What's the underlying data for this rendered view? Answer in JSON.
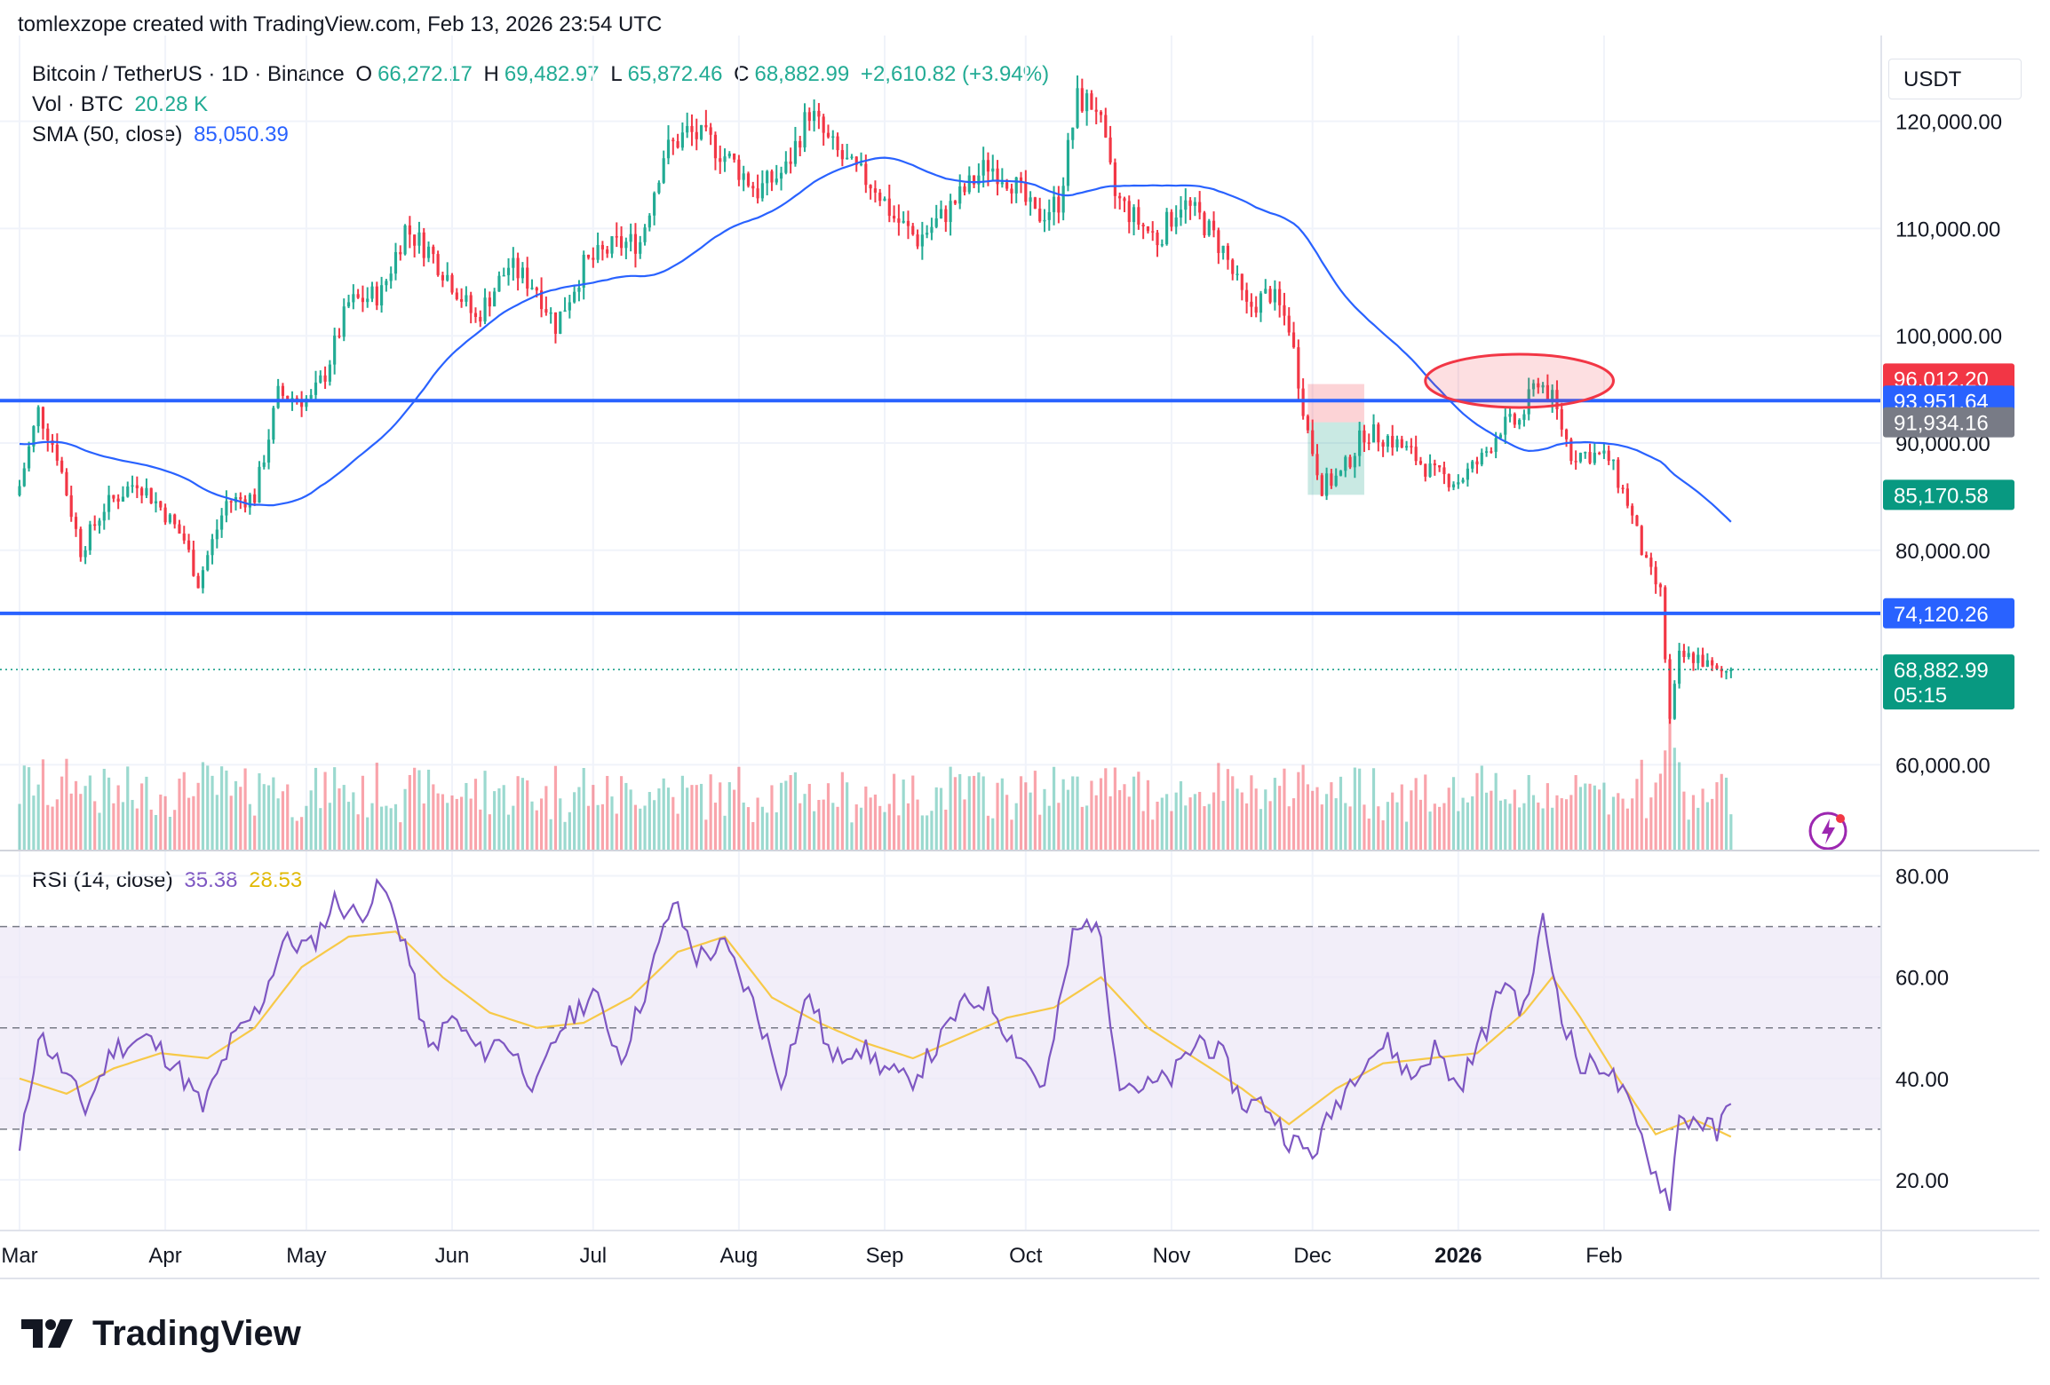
{
  "credit": "tomlexzope created with TradingView.com, Feb 13, 2026 23:54 UTC",
  "brand": "TradingView",
  "legend": {
    "symbol": "Bitcoin / TetherUS · 1D · Binance",
    "o_label": "O",
    "o": "66,272.17",
    "h_label": "H",
    "h": "69,482.97",
    "l_label": "L",
    "l": "65,872.46",
    "c_label": "C",
    "c": "68,882.99",
    "change": "+2,610.82 (+3.94%)",
    "vol_label": "Vol · BTC",
    "vol": "20.28 K",
    "sma_label": "SMA (50, close)",
    "sma": "85,050.39",
    "rsi_label": "RSI (14, close)",
    "rsi": "35.38",
    "rsi_ma": "28.53"
  },
  "axis_unit": "USDT",
  "colors": {
    "up": "#22ab94",
    "down": "#f23645",
    "sma": "#2962ff",
    "hline": "#2962ff",
    "rsi": "#7e57c2",
    "rsi_ma": "#f7c948",
    "rsi_band": "#ede7f6"
  },
  "chart_data": [
    {
      "type": "candlestick",
      "title": "Bitcoin / TetherUS · 1D · Binance",
      "ylim": [
        52000,
        128000
      ],
      "y_ticks": [
        "60,000.00",
        "80,000.00",
        "90,000.00",
        "100,000.00",
        "110,000.00",
        "120,000.00"
      ],
      "y_tick_values": [
        60000,
        80000,
        90000,
        100000,
        110000,
        120000
      ],
      "x_tick_labels": [
        "Mar",
        "Apr",
        "May",
        "Jun",
        "Jul",
        "Aug",
        "Sep",
        "Oct",
        "Nov",
        "Dec",
        "2026",
        "Feb"
      ],
      "close_series": [
        [
          0,
          86000
        ],
        [
          4,
          93000
        ],
        [
          8,
          89000
        ],
        [
          13,
          80000
        ],
        [
          18,
          84000
        ],
        [
          25,
          86500
        ],
        [
          30,
          84000
        ],
        [
          35,
          81000
        ],
        [
          38,
          77000
        ],
        [
          44,
          84500
        ],
        [
          50,
          85000
        ],
        [
          55,
          94500
        ],
        [
          62,
          94000
        ],
        [
          65,
          96500
        ],
        [
          70,
          103000
        ],
        [
          77,
          104000
        ],
        [
          82,
          110000
        ],
        [
          87,
          108000
        ],
        [
          92,
          105000
        ],
        [
          97,
          101500
        ],
        [
          104,
          106500
        ],
        [
          110,
          104500
        ],
        [
          114,
          101000
        ],
        [
          120,
          106500
        ],
        [
          127,
          108500
        ],
        [
          132,
          108800
        ],
        [
          137,
          117000
        ],
        [
          142,
          119000
        ],
        [
          147,
          118000
        ],
        [
          152,
          116000
        ],
        [
          157,
          113500
        ],
        [
          163,
          115500
        ],
        [
          168,
          121000
        ],
        [
          172,
          118000
        ],
        [
          177,
          115500
        ],
        [
          182,
          114000
        ],
        [
          186,
          111000
        ],
        [
          191,
          109000
        ],
        [
          196,
          111000
        ],
        [
          201,
          113500
        ],
        [
          206,
          116000
        ],
        [
          211,
          114500
        ],
        [
          216,
          111000
        ],
        [
          221,
          112500
        ],
        [
          225,
          122000
        ],
        [
          229,
          121500
        ],
        [
          233,
          113000
        ],
        [
          237,
          111000
        ],
        [
          242,
          109000
        ],
        [
          247,
          112500
        ],
        [
          251,
          111000
        ],
        [
          256,
          108000
        ],
        [
          261,
          102500
        ],
        [
          266,
          104000
        ],
        [
          270,
          101000
        ],
        [
          274,
          91000
        ],
        [
          277,
          86000
        ],
        [
          281,
          87000
        ],
        [
          286,
          91000
        ],
        [
          291,
          90500
        ],
        [
          296,
          89000
        ],
        [
          301,
          87000
        ],
        [
          306,
          86500
        ],
        [
          311,
          88500
        ],
        [
          315,
          91500
        ],
        [
          319,
          92000
        ],
        [
          323,
          96000
        ],
        [
          326,
          94000
        ],
        [
          330,
          89000
        ],
        [
          334,
          89000
        ],
        [
          338,
          88500
        ],
        [
          342,
          84500
        ],
        [
          346,
          78500
        ],
        [
          349,
          76000
        ],
        [
          351,
          64000
        ],
        [
          353,
          70000
        ],
        [
          357,
          70000
        ],
        [
          361,
          68500
        ],
        [
          364,
          68883
        ]
      ],
      "last_price": 68882.99,
      "horizontal_lines": [
        93950,
        74120
      ],
      "price_labels": [
        {
          "text": "96,012.20",
          "value": 96012.2,
          "color": "#f23645"
        },
        {
          "text": "93,951.64",
          "value": 93951.64,
          "color": "#2962ff"
        },
        {
          "text": "91,934.16",
          "value": 91934.16,
          "color": "#787b86"
        },
        {
          "text": "85,170.58",
          "value": 85170.58,
          "color": "#089981"
        },
        {
          "text": "74,120.26",
          "value": 74120.26,
          "color": "#2962ff"
        },
        {
          "text": "68,882.99",
          "value": 68882.99,
          "color": "#089981",
          "sub": "05:15"
        }
      ]
    },
    {
      "type": "line",
      "title": "RSI (14, close)",
      "ylim": [
        10,
        85
      ],
      "y_ticks": [
        "20.00",
        "40.00",
        "60.00",
        "80.00"
      ],
      "y_tick_values": [
        20,
        40,
        60,
        80
      ],
      "band": [
        30,
        70
      ],
      "series": [
        {
          "name": "RSI (14, close)",
          "points": [
            [
              0,
              25
            ],
            [
              4,
              49
            ],
            [
              9,
              42
            ],
            [
              14,
              34
            ],
            [
              20,
              46
            ],
            [
              27,
              48
            ],
            [
              33,
              43
            ],
            [
              39,
              34
            ],
            [
              45,
              47
            ],
            [
              51,
              54
            ],
            [
              56,
              67
            ],
            [
              62,
              66
            ],
            [
              67,
              75
            ],
            [
              72,
              72
            ],
            [
              77,
              78
            ],
            [
              82,
              67
            ],
            [
              87,
              45
            ],
            [
              92,
              52
            ],
            [
              98,
              45
            ],
            [
              103,
              48
            ],
            [
              110,
              38
            ],
            [
              115,
              50
            ],
            [
              122,
              57
            ],
            [
              128,
              44
            ],
            [
              134,
              60
            ],
            [
              139,
              75
            ],
            [
              144,
              64
            ],
            [
              150,
              66
            ],
            [
              156,
              55
            ],
            [
              162,
              40
            ],
            [
              168,
              57
            ],
            [
              173,
              43
            ],
            [
              178,
              47
            ],
            [
              184,
              42
            ],
            [
              189,
              39
            ],
            [
              195,
              46
            ],
            [
              200,
              54
            ],
            [
              206,
              56
            ],
            [
              212,
              46
            ],
            [
              218,
              38
            ],
            [
              224,
              68
            ],
            [
              229,
              72
            ],
            [
              234,
              40
            ],
            [
              239,
              38
            ],
            [
              245,
              40
            ],
            [
              251,
              48
            ],
            [
              256,
              44
            ],
            [
              260,
              35
            ],
            [
              265,
              35
            ],
            [
              270,
              28
            ],
            [
              275,
              25
            ],
            [
              280,
              35
            ],
            [
              286,
              44
            ],
            [
              291,
              47
            ],
            [
              296,
              40
            ],
            [
              301,
              46
            ],
            [
              306,
              38
            ],
            [
              312,
              50
            ],
            [
              316,
              60
            ],
            [
              320,
              53
            ],
            [
              324,
              71
            ],
            [
              328,
              53
            ],
            [
              332,
              42
            ],
            [
              337,
              43
            ],
            [
              341,
              37
            ],
            [
              345,
              28
            ],
            [
              348,
              21
            ],
            [
              351,
              16
            ],
            [
              353,
              32
            ],
            [
              357,
              32
            ],
            [
              361,
              29
            ],
            [
              364,
              35
            ]
          ]
        },
        {
          "name": "RSI-based MA",
          "points": [
            [
              0,
              40
            ],
            [
              10,
              37
            ],
            [
              20,
              42
            ],
            [
              30,
              45
            ],
            [
              40,
              44
            ],
            [
              50,
              50
            ],
            [
              60,
              62
            ],
            [
              70,
              68
            ],
            [
              80,
              69
            ],
            [
              90,
              60
            ],
            [
              100,
              53
            ],
            [
              110,
              50
            ],
            [
              120,
              51
            ],
            [
              130,
              56
            ],
            [
              140,
              65
            ],
            [
              150,
              68
            ],
            [
              160,
              56
            ],
            [
              170,
              51
            ],
            [
              180,
              47
            ],
            [
              190,
              44
            ],
            [
              200,
              48
            ],
            [
              210,
              52
            ],
            [
              220,
              54
            ],
            [
              230,
              60
            ],
            [
              240,
              50
            ],
            [
              250,
              44
            ],
            [
              260,
              38
            ],
            [
              270,
              31
            ],
            [
              280,
              38
            ],
            [
              290,
              43
            ],
            [
              300,
              44
            ],
            [
              310,
              45
            ],
            [
              320,
              53
            ],
            [
              326,
              60
            ],
            [
              332,
              52
            ],
            [
              340,
              40
            ],
            [
              348,
              29
            ],
            [
              356,
              32
            ],
            [
              364,
              28.5
            ]
          ]
        }
      ]
    }
  ]
}
